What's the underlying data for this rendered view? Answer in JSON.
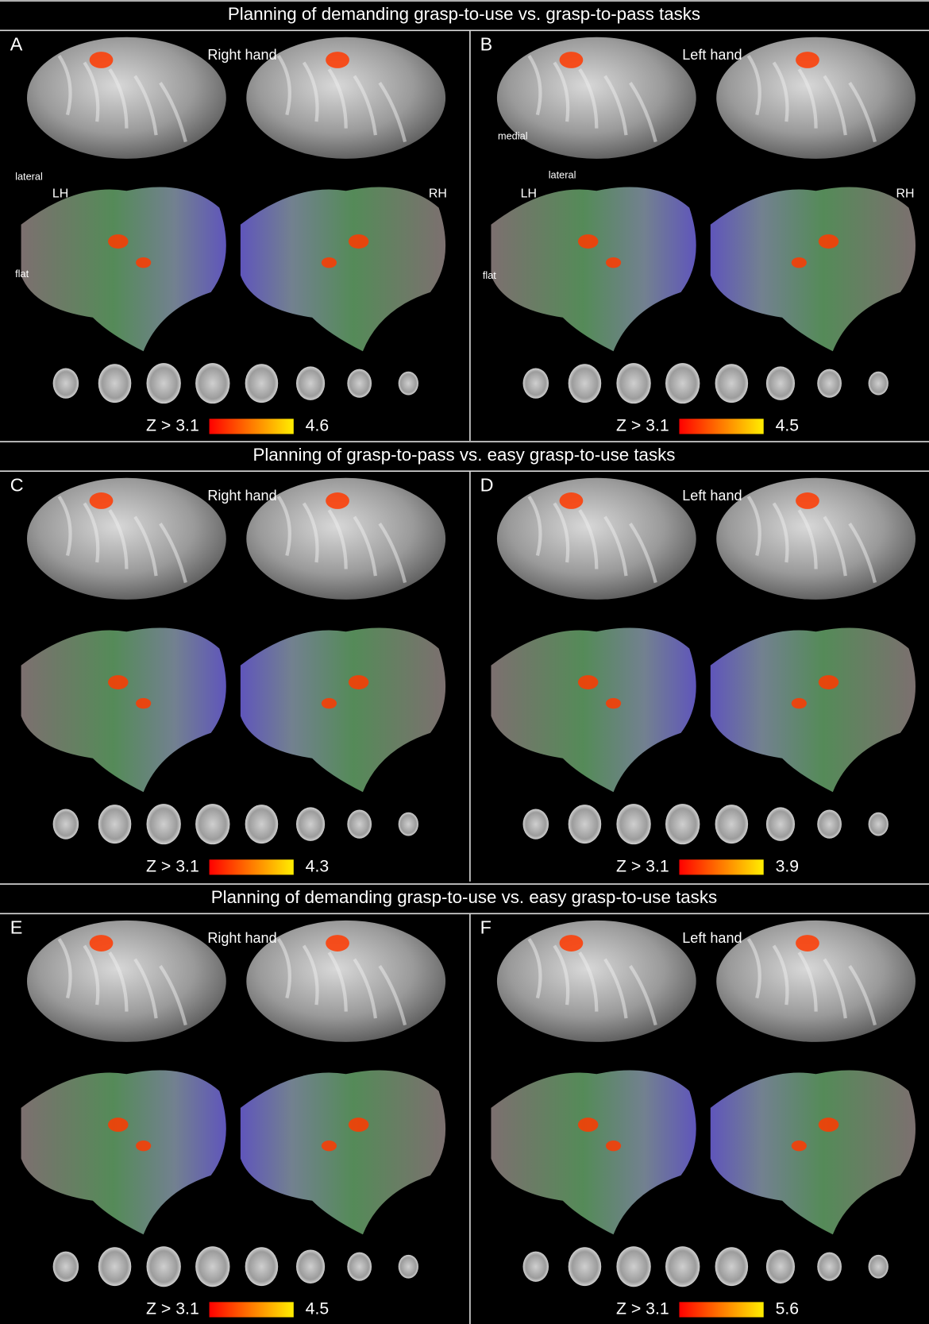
{
  "sections": [
    {
      "title": "Planning of demanding grasp-to-use vs. grasp-to-pass tasks",
      "panels": [
        {
          "letter": "A",
          "hand": "Right hand",
          "views": {
            "lateral": "lateral",
            "flat": "flat",
            "lh": "LH",
            "rh": "RH"
          },
          "z_min": "Z > 3.1",
          "z_max": "4.6"
        },
        {
          "letter": "B",
          "hand": "Left hand",
          "views": {
            "medial": "medial",
            "lateral": "lateral",
            "flat": "flat",
            "lh": "LH",
            "rh": "RH"
          },
          "z_min": "Z > 3.1",
          "z_max": "4.5"
        }
      ]
    },
    {
      "title": "Planning of grasp-to-pass vs. easy grasp-to-use tasks",
      "panels": [
        {
          "letter": "C",
          "hand": "Right hand",
          "z_min": "Z > 3.1",
          "z_max": "4.3"
        },
        {
          "letter": "D",
          "hand": "Left hand",
          "z_min": "Z > 3.1",
          "z_max": "3.9"
        }
      ]
    },
    {
      "title": "Planning of demanding grasp-to-use vs. easy grasp-to-use tasks",
      "panels": [
        {
          "letter": "E",
          "hand": "Right hand",
          "z_min": "Z > 3.1",
          "z_max": "4.5"
        },
        {
          "letter": "F",
          "hand": "Left hand",
          "z_min": "Z > 3.1",
          "z_max": "5.6"
        }
      ]
    }
  ]
}
